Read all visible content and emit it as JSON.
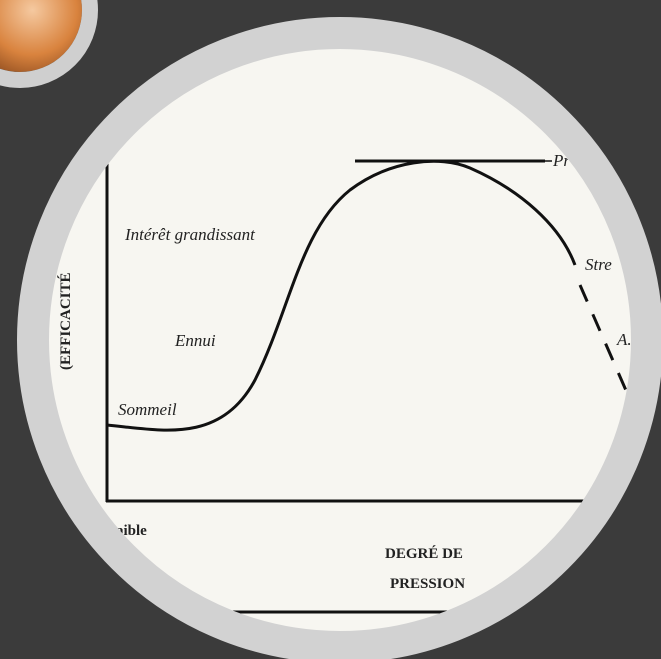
{
  "labels": {
    "peak": "Pr",
    "rising": "Intérêt grandissant",
    "boredom": "Ennui",
    "sleep": "Sommeil",
    "stress": "Stre",
    "collapse": "A.",
    "y_axis": "(EFFICACITÉ",
    "x_low": "aible",
    "x_axis_line1": "DEGRÉ DE",
    "x_axis_line2": "PRESSION"
  }
}
